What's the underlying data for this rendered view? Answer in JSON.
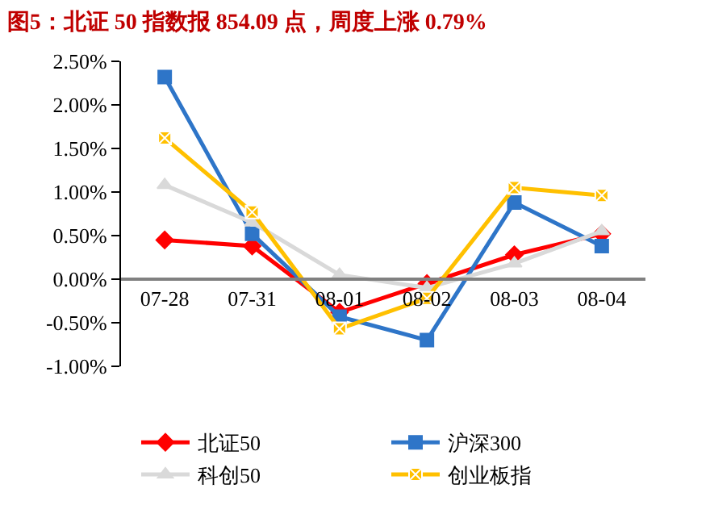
{
  "chart_data": {
    "type": "line",
    "title": "图5：北证 50 指数报 854.09 点，周度上涨 0.79%",
    "categories": [
      "07-28",
      "07-31",
      "08-01",
      "08-02",
      "08-03",
      "08-04"
    ],
    "series": [
      {
        "name": "北证50",
        "color": "#ff0000",
        "marker": "diamond",
        "values": [
          0.45,
          0.38,
          -0.38,
          -0.05,
          0.28,
          0.52
        ]
      },
      {
        "name": "沪深300",
        "color": "#2e75c8",
        "marker": "square",
        "values": [
          2.32,
          0.52,
          -0.43,
          -0.7,
          0.88,
          0.38
        ]
      },
      {
        "name": "科创50",
        "color": "#d9d9d9",
        "marker": "triangle",
        "values": [
          1.08,
          0.65,
          0.05,
          -0.1,
          0.18,
          0.55
        ]
      },
      {
        "name": "创业板指",
        "color": "#ffc000",
        "marker": "cross",
        "values": [
          1.62,
          0.77,
          -0.57,
          -0.22,
          1.05,
          0.96
        ]
      }
    ],
    "ylim": [
      -1.0,
      2.5
    ],
    "yticks": [
      {
        "value": -1.0,
        "label": "-1.00%"
      },
      {
        "value": -0.5,
        "label": "-0.50%"
      },
      {
        "value": 0,
        "label": "0.00%"
      },
      {
        "value": 0.5,
        "label": "0.50%"
      },
      {
        "value": 1.0,
        "label": "1.00%"
      },
      {
        "value": 1.5,
        "label": "1.50%"
      },
      {
        "value": 2.0,
        "label": "2.00%"
      },
      {
        "value": 2.5,
        "label": "2.50%"
      }
    ],
    "legend": "bottom",
    "line_style": "solid"
  }
}
